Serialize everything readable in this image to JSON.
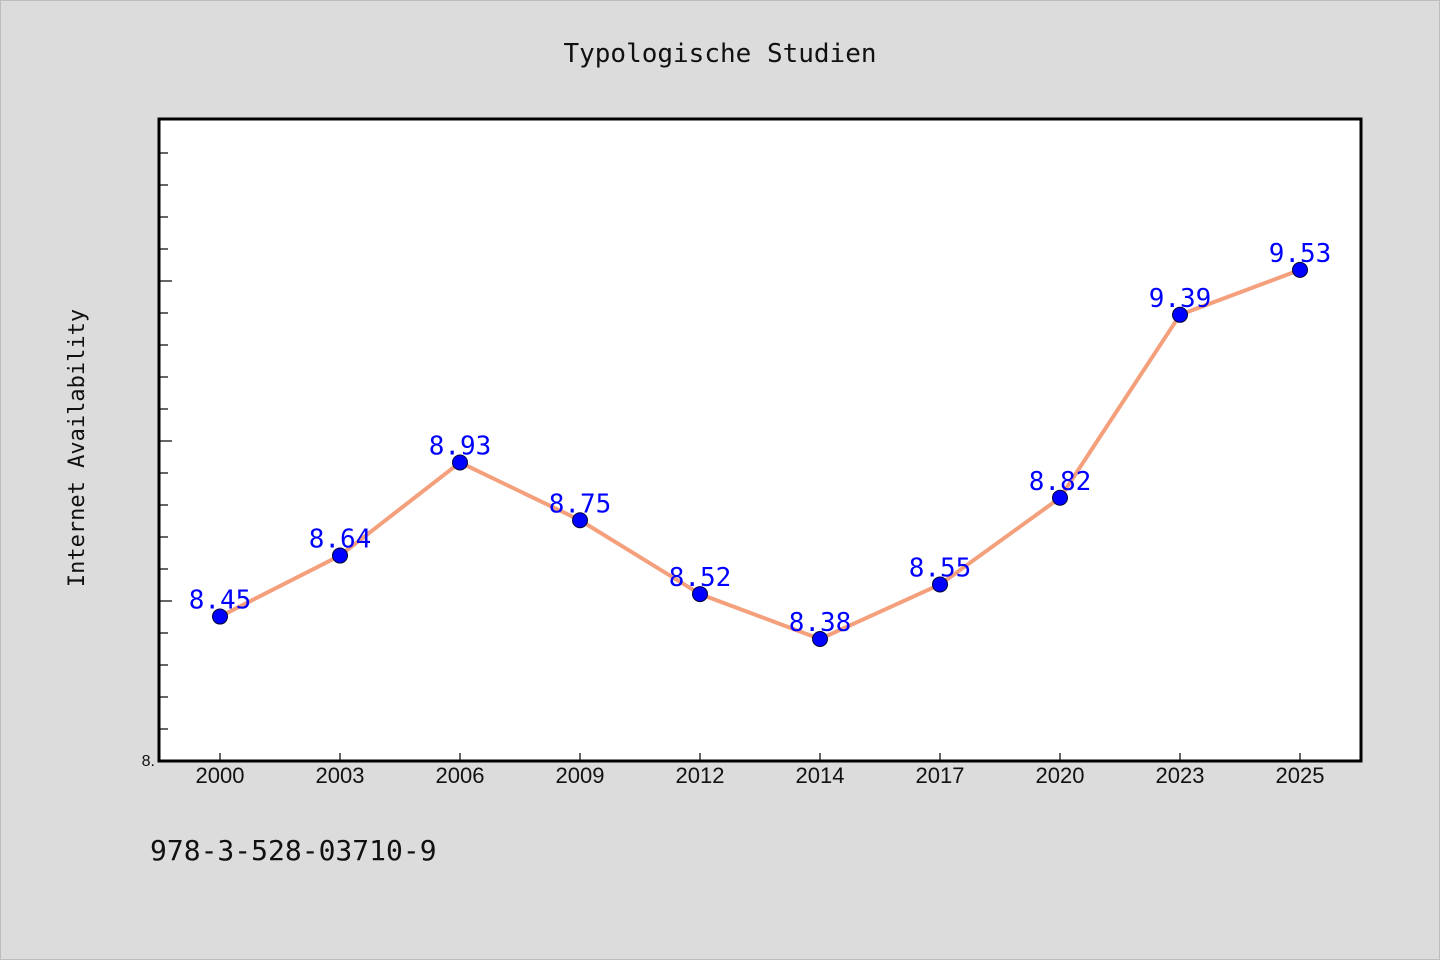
{
  "chart_data": {
    "type": "line",
    "title": "Typologische Studien",
    "xlabel": "",
    "ylabel": "Internet Availability",
    "categories": [
      "2000",
      "2003",
      "2006",
      "2009",
      "2012",
      "2014",
      "2017",
      "2020",
      "2023",
      "2025"
    ],
    "series": [
      {
        "values": [
          8.45,
          8.64,
          8.93,
          8.75,
          8.52,
          8.38,
          8.55,
          8.82,
          9.39,
          9.53
        ]
      }
    ],
    "data_labels": [
      "8.45",
      "8.64",
      "8.93",
      "8.75",
      "8.52",
      "8.38",
      "8.55",
      "8.82",
      "9.39",
      "9.53"
    ],
    "ylim": [
      8.0,
      10.0
    ],
    "y_tick_label": "8.",
    "grid": false,
    "legend": "none"
  },
  "colors": {
    "background": "#dcdcdc",
    "plot_background": "#ffffff",
    "line": "#f4a07c",
    "marker": "#0000ff",
    "data_label": "#0000ff"
  },
  "footer": {
    "code": "978-3-528-03710-9"
  }
}
